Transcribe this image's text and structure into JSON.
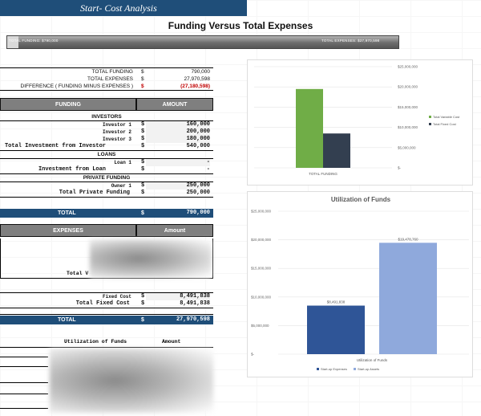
{
  "header": {
    "sheet_title": "Start- Cost Analysis",
    "page_title": "Funding Versus Total Expenses"
  },
  "progress": {
    "left_label": "TOTAL FUNDING:  $790,000",
    "right_label": "TOTAL EXPENSES:  $27,970,598",
    "funded_fraction": 0.028
  },
  "summary": [
    {
      "label": "TOTAL FUNDING",
      "cur": "$",
      "value": "790,000",
      "neg": false
    },
    {
      "label": "TOTAL EXPENSES",
      "cur": "$",
      "value": "27,970,598",
      "neg": false
    },
    {
      "label": "DIFFERENCE  ( FUNDING MINUS EXPENSES )",
      "cur": "$",
      "value": "(27,180,598)",
      "neg": true
    }
  ],
  "funding": {
    "col1": "FUNDING",
    "col2": "AMOUNT",
    "investors_title": "INVESTORS",
    "investors": [
      {
        "label": "Investor 1",
        "cur": "$",
        "value": "160,000"
      },
      {
        "label": "Investor 2",
        "cur": "$",
        "value": "200,000"
      },
      {
        "label": "Investor 3",
        "cur": "$",
        "value": "180,000"
      }
    ],
    "investors_total": {
      "label": "Total Investment from Investor",
      "cur": "$",
      "value": "540,000"
    },
    "loans_title": "LOANS",
    "loans": [
      {
        "label": "Loan 1",
        "cur": "$",
        "value": "-"
      }
    ],
    "loans_total": {
      "label": "Investment from Loan",
      "cur": "$",
      "value": "-"
    },
    "private_title": "PRIVATE FUNDING",
    "private": [
      {
        "label": "Owner 1",
        "cur": "$",
        "value": "250,000"
      }
    ],
    "private_total": {
      "label": "Total Private Funding",
      "cur": "$",
      "value": "250,000"
    },
    "total": {
      "label": "TOTAL",
      "cur": "$",
      "value": "790,000"
    }
  },
  "expenses": {
    "col1": "EXPENSES",
    "col2": "Amount",
    "partial_label": "Total V",
    "fixed": {
      "label": "Fixed Cost",
      "cur": "$",
      "value": "8,491,838"
    },
    "fixed_total": {
      "label": "Total Fixed Cost",
      "cur": "$",
      "value": "8,491,838"
    },
    "total": {
      "label": "TOTAL",
      "cur": "$",
      "value": "27,970,598"
    }
  },
  "utilization_table": {
    "col1": "Utilization of Funds",
    "col2": "Amount"
  },
  "colors": {
    "navy": "#1f4e79",
    "green": "#70ad47",
    "dark_slate": "#333f50",
    "blue_dark": "#2f5597",
    "blue_light": "#8fa9dc",
    "header_gray": "#7f7f7f",
    "neg_red": "#c00000"
  },
  "chart_data": [
    {
      "type": "bar",
      "title": "",
      "categories": [
        "TOTAL FUNDING"
      ],
      "series": [
        {
          "name": "Total Variable Cost",
          "values": [
            19478760
          ]
        },
        {
          "name": "Total Fixed Cost",
          "values": [
            8491838
          ]
        }
      ],
      "y_ticks": [
        "$25,000,000",
        "$20,000,000",
        "$15,000,000",
        "$10,000,000",
        "$5,000,000",
        "$-"
      ],
      "ylim": [
        0,
        25000000
      ],
      "legend": "right",
      "grid": true
    },
    {
      "type": "bar",
      "title": "Utilization of Funds",
      "categories": [
        "Utilization of Funds"
      ],
      "series": [
        {
          "name": "Start-up Expenses",
          "values": [
            8491838
          ],
          "label": "$8,491,838"
        },
        {
          "name": "Start-up Assets",
          "values": [
            19478760
          ],
          "label": "$19,478,760"
        }
      ],
      "y_ticks": [
        "$25,000,000",
        "$20,000,000",
        "$15,000,000",
        "$10,000,000",
        "$5,000,000",
        "$-"
      ],
      "ylim": [
        0,
        25000000
      ],
      "legend": "bottom",
      "grid": true
    }
  ]
}
